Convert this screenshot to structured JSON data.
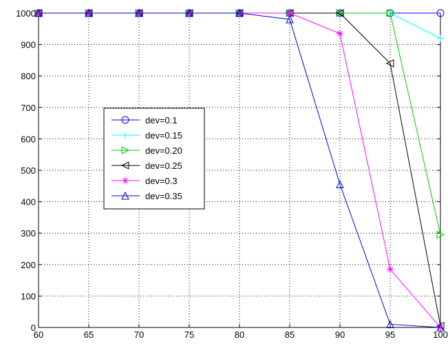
{
  "chart_data": {
    "type": "line",
    "title": "",
    "xlabel": "",
    "ylabel": "",
    "x": [
      60,
      65,
      70,
      75,
      80,
      85,
      90,
      95,
      100
    ],
    "xlim": [
      60,
      100
    ],
    "ylim": [
      0,
      1000
    ],
    "xticks": [
      "60",
      "65",
      "70",
      "75",
      "80",
      "85",
      "90",
      "95",
      "100"
    ],
    "yticks": [
      "0",
      "100",
      "200",
      "300",
      "400",
      "500",
      "600",
      "700",
      "800",
      "900",
      "1000"
    ],
    "grid": true,
    "legend_position": "center-left",
    "series": [
      {
        "name": "dev=0.1",
        "color": "#0000ff",
        "marker": "circle",
        "values": [
          1000,
          1000,
          1000,
          1000,
          1000,
          1000,
          1000,
          1000,
          1000
        ]
      },
      {
        "name": "dev=0.15",
        "color": "#00ffff",
        "marker": "plus",
        "values": [
          1000,
          1000,
          1000,
          1000,
          1000,
          1000,
          1000,
          1000,
          920
        ]
      },
      {
        "name": "dev=0.20",
        "color": "#00cc00",
        "marker": "triangle-right",
        "values": [
          1000,
          1000,
          1000,
          1000,
          1000,
          1000,
          1000,
          1000,
          295
        ]
      },
      {
        "name": "dev=0.25",
        "color": "#000000",
        "marker": "triangle-left",
        "values": [
          1000,
          1000,
          1000,
          1000,
          1000,
          1000,
          1000,
          840,
          5
        ]
      },
      {
        "name": "dev=0.3",
        "color": "#ff00ff",
        "marker": "star",
        "values": [
          1000,
          1000,
          1000,
          1000,
          1000,
          1000,
          935,
          185,
          0
        ]
      },
      {
        "name": "dev=0.35",
        "color": "#0000cc",
        "marker": "triangle-up",
        "values": [
          1000,
          1000,
          1000,
          1000,
          1000,
          980,
          455,
          10,
          0
        ]
      }
    ]
  }
}
